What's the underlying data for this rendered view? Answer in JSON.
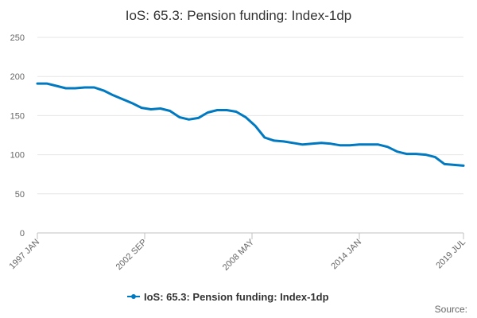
{
  "chart_data": {
    "type": "line",
    "title": "IoS: 65.3: Pension funding: Index-1dp",
    "xlabel": "",
    "ylabel": "",
    "ylim": [
      0,
      250
    ],
    "yticks": [
      0,
      50,
      100,
      150,
      200,
      250
    ],
    "xlim": [
      "1997-01",
      "2019-07"
    ],
    "xticks": [
      {
        "date": "1997-01",
        "label": "1997 JAN"
      },
      {
        "date": "2002-09",
        "label": "2002 SEP"
      },
      {
        "date": "2008-05",
        "label": "2008 MAY"
      },
      {
        "date": "2014-01",
        "label": "2014 JAN"
      },
      {
        "date": "2019-07",
        "label": "2019 JUL"
      }
    ],
    "grid": "horizontal",
    "legend": "bottom",
    "series": [
      {
        "name": "IoS: 65.3: Pension funding: Index-1dp",
        "color": "#0079c1",
        "x": [
          "1997-01",
          "1997-07",
          "1998-01",
          "1998-07",
          "1999-01",
          "1999-07",
          "2000-01",
          "2000-07",
          "2001-01",
          "2001-07",
          "2002-01",
          "2002-07",
          "2003-01",
          "2003-07",
          "2004-01",
          "2004-07",
          "2005-01",
          "2005-07",
          "2006-01",
          "2006-07",
          "2007-01",
          "2007-07",
          "2008-01",
          "2008-07",
          "2009-01",
          "2009-07",
          "2010-01",
          "2010-07",
          "2011-01",
          "2011-07",
          "2012-01",
          "2012-07",
          "2013-01",
          "2013-07",
          "2014-01",
          "2014-07",
          "2015-01",
          "2015-07",
          "2016-01",
          "2016-07",
          "2017-01",
          "2017-07",
          "2018-01",
          "2018-07",
          "2019-01",
          "2019-07"
        ],
        "values": [
          191,
          191,
          188,
          185,
          185,
          186,
          186,
          182,
          176,
          171,
          166,
          160,
          158,
          159,
          156,
          148,
          145,
          147,
          154,
          157,
          157,
          155,
          148,
          137,
          122,
          118,
          117,
          115,
          113,
          114,
          115,
          114,
          112,
          112,
          113,
          113,
          113,
          110,
          104,
          101,
          101,
          100,
          97,
          88,
          87,
          86
        ]
      }
    ]
  },
  "legend_label": "IoS: 65.3: Pension funding: Index-1dp",
  "source_label": "Source:"
}
